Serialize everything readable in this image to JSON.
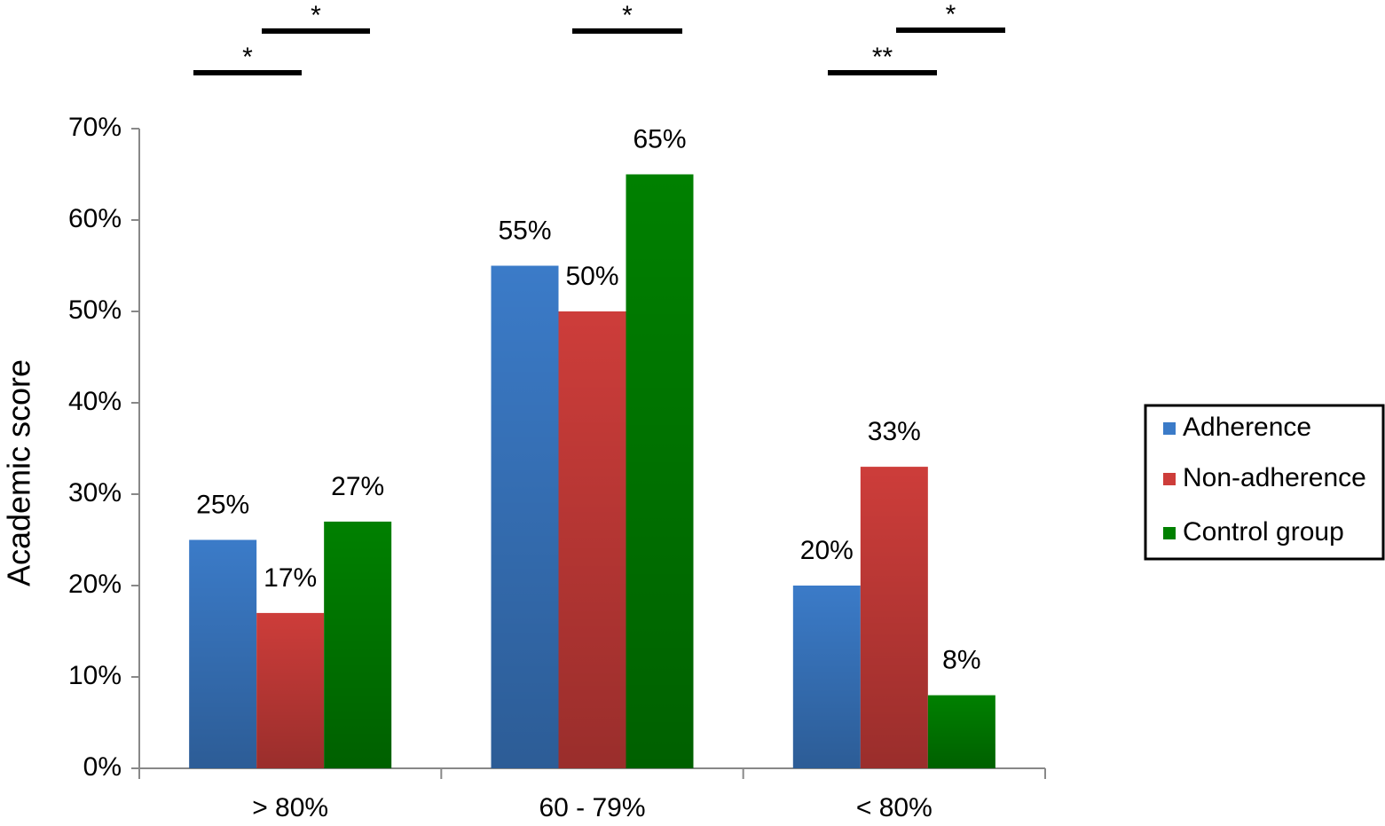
{
  "chart_data": {
    "type": "bar",
    "y_label": "Academic score",
    "categories": [
      "> 80%",
      "60 - 79%",
      "< 80%"
    ],
    "series": [
      {
        "name": "Adherence",
        "color": "#3b7bc8",
        "values": [
          25,
          55,
          20
        ],
        "value_labels": [
          "25%",
          "55%",
          "20%"
        ]
      },
      {
        "name": "Non-adherence",
        "color": "#cd3d3a",
        "values": [
          17,
          50,
          33
        ],
        "value_labels": [
          "17%",
          "50%",
          "33%"
        ]
      },
      {
        "name": "Control group",
        "color": "#008000",
        "values": [
          27,
          65,
          8
        ],
        "value_labels": [
          "27%",
          "65%",
          "8%"
        ]
      }
    ],
    "ylim": [
      0,
      70
    ],
    "yticks": [
      {
        "value": 0,
        "label": "0%"
      },
      {
        "value": 10,
        "label": "10%"
      },
      {
        "value": 20,
        "label": "20%"
      },
      {
        "value": 30,
        "label": "30%"
      },
      {
        "value": 40,
        "label": "40%"
      },
      {
        "value": 50,
        "label": "50%"
      },
      {
        "value": 60,
        "label": "60%"
      },
      {
        "value": 70,
        "label": "70%"
      }
    ],
    "grid": false,
    "legend": "right",
    "annotations": [
      "*",
      "*",
      "*",
      "**",
      "*"
    ]
  }
}
